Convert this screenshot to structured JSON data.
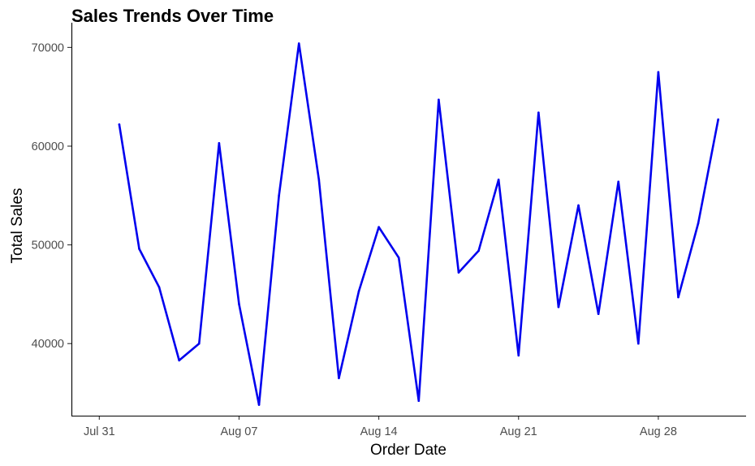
{
  "chart_data": {
    "type": "line",
    "title": "Sales Trends Over Time",
    "xlabel": "Order Date",
    "ylabel": "Total Sales",
    "x_type": "date",
    "xlim": [
      "2023-07-31",
      "2023-08-31"
    ],
    "ylim": [
      32700,
      72500
    ],
    "x_ticks": [
      {
        "value": "2023-07-31",
        "label": "Jul 31"
      },
      {
        "value": "2023-08-07",
        "label": "Aug 07"
      },
      {
        "value": "2023-08-14",
        "label": "Aug 14"
      },
      {
        "value": "2023-08-21",
        "label": "Aug 21"
      },
      {
        "value": "2023-08-28",
        "label": "Aug 28"
      }
    ],
    "y_ticks": [
      {
        "value": 40000,
        "label": "40000"
      },
      {
        "value": 50000,
        "label": "50000"
      },
      {
        "value": 60000,
        "label": "60000"
      },
      {
        "value": 70000,
        "label": "70000"
      }
    ],
    "grid": false,
    "series": [
      {
        "color": "#0000ee",
        "points": [
          {
            "x": "2023-08-01",
            "y": 62200
          },
          {
            "x": "2023-08-02",
            "y": 49600
          },
          {
            "x": "2023-08-03",
            "y": 45700
          },
          {
            "x": "2023-08-04",
            "y": 38300
          },
          {
            "x": "2023-08-05",
            "y": 40000
          },
          {
            "x": "2023-08-06",
            "y": 60300
          },
          {
            "x": "2023-08-07",
            "y": 44000
          },
          {
            "x": "2023-08-08",
            "y": 33800
          },
          {
            "x": "2023-08-09",
            "y": 55000
          },
          {
            "x": "2023-08-10",
            "y": 70400
          },
          {
            "x": "2023-08-11",
            "y": 56600
          },
          {
            "x": "2023-08-12",
            "y": 36500
          },
          {
            "x": "2023-08-13",
            "y": 45300
          },
          {
            "x": "2023-08-14",
            "y": 51800
          },
          {
            "x": "2023-08-15",
            "y": 48700
          },
          {
            "x": "2023-08-16",
            "y": 34200
          },
          {
            "x": "2023-08-17",
            "y": 64700
          },
          {
            "x": "2023-08-18",
            "y": 47200
          },
          {
            "x": "2023-08-19",
            "y": 49400
          },
          {
            "x": "2023-08-20",
            "y": 56600
          },
          {
            "x": "2023-08-21",
            "y": 38800
          },
          {
            "x": "2023-08-22",
            "y": 63400
          },
          {
            "x": "2023-08-23",
            "y": 43700
          },
          {
            "x": "2023-08-24",
            "y": 54000
          },
          {
            "x": "2023-08-25",
            "y": 43000
          },
          {
            "x": "2023-08-26",
            "y": 56400
          },
          {
            "x": "2023-08-27",
            "y": 40000
          },
          {
            "x": "2023-08-28",
            "y": 67500
          },
          {
            "x": "2023-08-29",
            "y": 44700
          },
          {
            "x": "2023-08-30",
            "y": 52200
          },
          {
            "x": "2023-08-31",
            "y": 62700
          }
        ]
      }
    ]
  }
}
